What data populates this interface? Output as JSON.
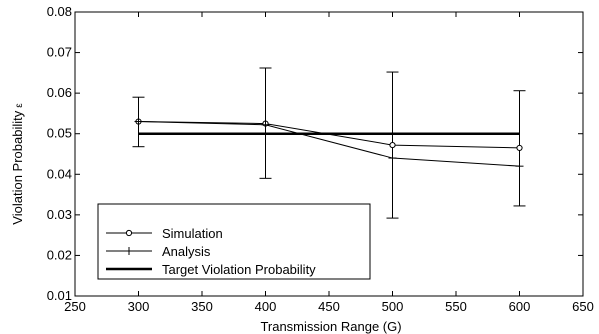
{
  "chart_data": {
    "type": "line",
    "xlabel": "Transmission Range (G)",
    "ylabel": "Violation Probability",
    "ylabel_symbol": "ε",
    "xlim": [
      250,
      650
    ],
    "ylim": [
      0.01,
      0.08
    ],
    "x_ticks": [
      "250",
      "300",
      "350",
      "400",
      "450",
      "500",
      "550",
      "600",
      "650"
    ],
    "y_ticks": [
      "0.01",
      "0.02",
      "0.03",
      "0.04",
      "0.05",
      "0.06",
      "0.07",
      "0.08"
    ],
    "grid": false,
    "legend_position": "bottom-left",
    "series": [
      {
        "name": "Simulation",
        "marker": "circle",
        "x": [
          300,
          400,
          500,
          600
        ],
        "y": [
          0.053,
          0.0525,
          0.0472,
          0.0465
        ],
        "error_low": [
          0.0468,
          0.039,
          0.0292,
          0.0322
        ],
        "error_high": [
          0.059,
          0.0662,
          0.0652,
          0.0606
        ]
      },
      {
        "name": "Analysis",
        "marker": "plus",
        "x": [
          300,
          400,
          500,
          600
        ],
        "y": [
          0.053,
          0.0522,
          0.044,
          0.042
        ]
      },
      {
        "name": "Target Violation Probability",
        "marker": "none",
        "thick": true,
        "x": [
          300,
          600
        ],
        "y": [
          0.05,
          0.05
        ]
      }
    ]
  }
}
